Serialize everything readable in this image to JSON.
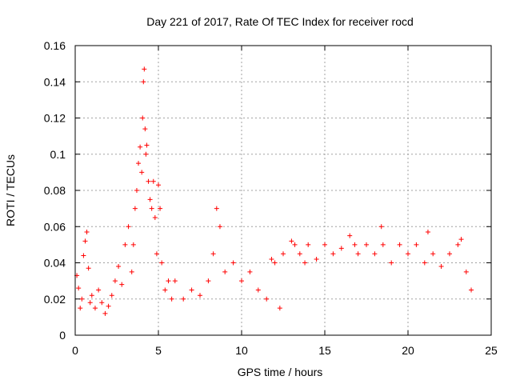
{
  "chart_data": {
    "type": "scatter",
    "title": "Day 221 of 2017, Rate Of TEC Index for receiver rocd",
    "xlabel": "GPS time / hours",
    "ylabel": "ROTI / TECUs",
    "xlim": [
      0,
      25
    ],
    "ylim": [
      0,
      0.16
    ],
    "x_ticks": [
      "0",
      "5",
      "10",
      "15",
      "20",
      "25"
    ],
    "y_ticks": [
      "0",
      "0.02",
      "0.04",
      "0.06",
      "0.08",
      "0.1",
      "0.12",
      "0.14",
      "0.16"
    ],
    "grid": true,
    "marker": "plus",
    "color": "#ff0000",
    "series": [
      {
        "x": [
          0.1,
          0.2,
          0.3,
          0.4,
          0.5,
          0.6,
          0.7,
          0.8,
          0.9,
          1.0,
          1.2,
          1.4,
          1.6,
          1.8,
          2.0,
          2.2,
          2.4,
          2.6,
          2.8,
          3.0,
          3.2,
          3.4,
          3.5,
          3.6,
          3.7,
          3.8,
          3.9,
          4.0,
          4.05,
          4.1,
          4.15,
          4.2,
          4.25,
          4.3,
          4.4,
          4.5,
          4.6,
          4.7,
          4.8,
          4.9,
          5.0,
          5.1,
          5.2,
          5.4,
          5.6,
          5.8,
          6.0,
          6.5,
          7.0,
          7.5,
          8.0,
          8.3,
          8.5,
          8.7,
          9.0,
          9.5,
          10.0,
          10.5,
          11.0,
          11.5,
          11.8,
          12.0,
          12.3,
          12.5,
          13.0,
          13.2,
          13.5,
          13.8,
          14.0,
          14.5,
          15.0,
          15.5,
          16.0,
          16.5,
          16.8,
          17.0,
          17.5,
          18.0,
          18.4,
          18.5,
          19.0,
          19.5,
          20.0,
          20.5,
          21.0,
          21.2,
          21.5,
          22.0,
          22.5,
          23.0,
          23.2,
          23.5,
          23.8
        ],
        "y": [
          0.033,
          0.026,
          0.015,
          0.02,
          0.044,
          0.052,
          0.057,
          0.037,
          0.018,
          0.022,
          0.015,
          0.025,
          0.018,
          0.012,
          0.016,
          0.022,
          0.03,
          0.038,
          0.028,
          0.05,
          0.06,
          0.035,
          0.05,
          0.07,
          0.08,
          0.095,
          0.104,
          0.09,
          0.12,
          0.14,
          0.147,
          0.114,
          0.1,
          0.105,
          0.085,
          0.075,
          0.07,
          0.085,
          0.065,
          0.045,
          0.083,
          0.07,
          0.04,
          0.025,
          0.03,
          0.02,
          0.03,
          0.02,
          0.025,
          0.022,
          0.03,
          0.045,
          0.07,
          0.06,
          0.035,
          0.04,
          0.03,
          0.035,
          0.025,
          0.02,
          0.042,
          0.04,
          0.015,
          0.045,
          0.052,
          0.05,
          0.045,
          0.04,
          0.05,
          0.042,
          0.05,
          0.045,
          0.048,
          0.055,
          0.05,
          0.045,
          0.05,
          0.045,
          0.06,
          0.05,
          0.04,
          0.05,
          0.045,
          0.05,
          0.04,
          0.057,
          0.045,
          0.038,
          0.045,
          0.05,
          0.053,
          0.035,
          0.025
        ]
      }
    ]
  }
}
